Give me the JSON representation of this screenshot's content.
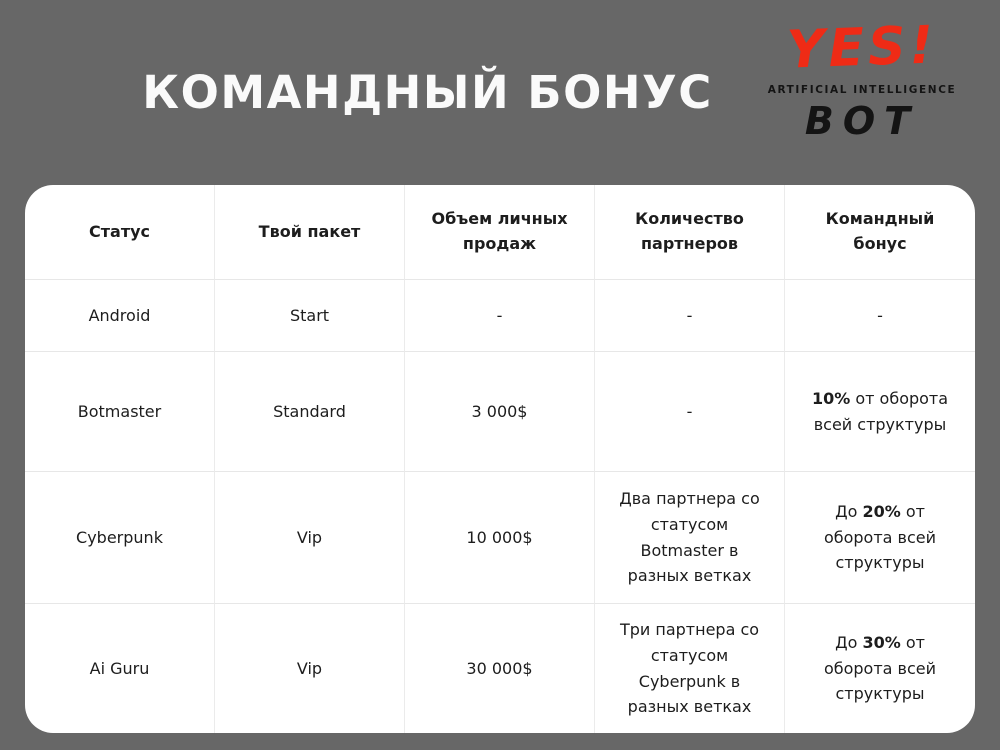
{
  "slide": {
    "background_color": "#676767",
    "title": "КОМАНДНЫЙ БОНУС"
  },
  "logo": {
    "line1": "YES!",
    "line2": "ARTIFICIAL INTELLIGENCE",
    "line3": "BOT",
    "accent_color": "#ef2b16",
    "text_color": "#141414"
  },
  "table": {
    "headers": [
      "Статус",
      "Твой пакет",
      "Объем личных продаж",
      "Количество партнеров",
      "Командный бонус"
    ],
    "rows": [
      {
        "status": "Android",
        "package": "Start",
        "sales": "-",
        "partners": "-",
        "bonus": {
          "pre": "-",
          "bold": "",
          "post": ""
        }
      },
      {
        "status": "Botmaster",
        "package": "Standard",
        "sales": "3 000$",
        "partners": "-",
        "bonus": {
          "pre": "",
          "bold": "10%",
          "post": " от оборота всей структуры"
        }
      },
      {
        "status": "Cyberpunk",
        "package": "Vip",
        "sales": "10 000$",
        "partners": "Два партнера со статусом Botmaster в разных ветках",
        "bonus": {
          "pre": "До ",
          "bold": "20%",
          "post": " от оборота всей структуры"
        }
      },
      {
        "status": "Ai Guru",
        "package": "Vip",
        "sales": "30 000$",
        "partners": "Три партнера со статусом Cyberpunk в разных ветках",
        "bonus": {
          "pre": "До ",
          "bold": "30%",
          "post": " от оборота всей структуры"
        }
      }
    ]
  }
}
